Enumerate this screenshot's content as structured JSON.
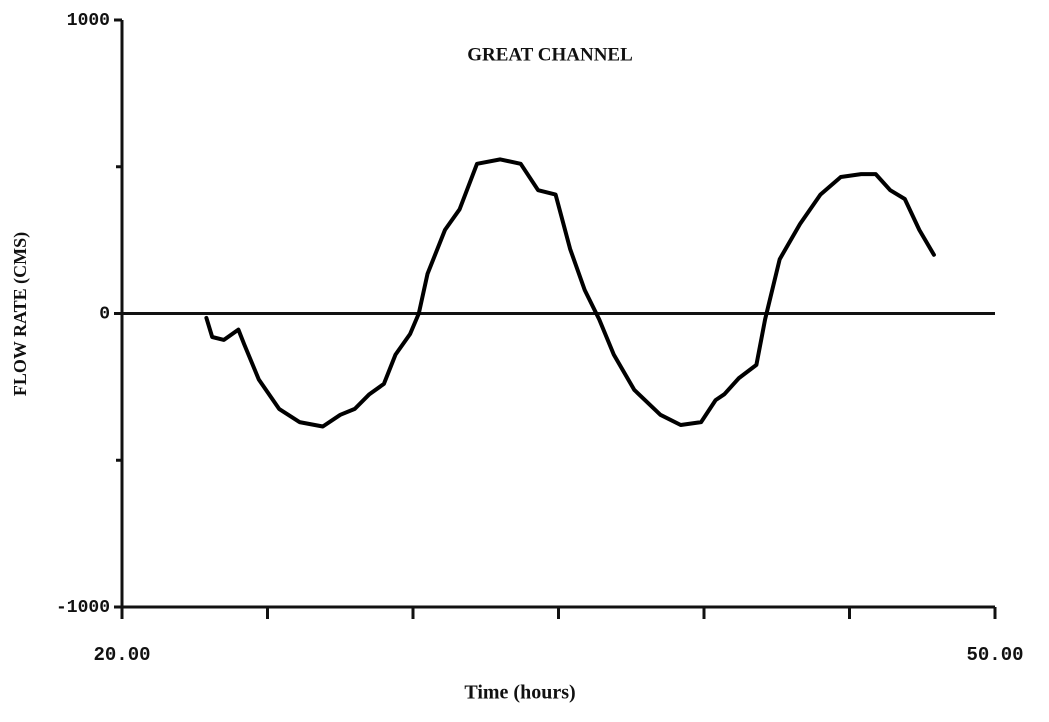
{
  "chart_data": {
    "type": "line",
    "title": "GREAT CHANNEL",
    "x_label": "Time (hours)",
    "y_label": "FLOW RATE (CMS)",
    "xlim": [
      20,
      50
    ],
    "ylim": [
      -1000,
      1000
    ],
    "xticks": [
      {
        "value": 20,
        "label": "20.00"
      },
      {
        "value": 50,
        "label": "50.00"
      }
    ],
    "xminor_ticks": [
      25,
      30,
      35,
      40,
      45
    ],
    "yticks": [
      1000,
      0,
      -1000
    ],
    "yminor_ticks": [
      500,
      -500
    ],
    "color": "#000000",
    "series": [
      {
        "name": "GREAT CHANNEL",
        "color": "#000000",
        "x": [
          22.9,
          23.1,
          23.5,
          24.0,
          24.2,
          24.7,
          25.4,
          26.1,
          26.9,
          27.5,
          28.0,
          28.5,
          29.0,
          29.4,
          29.9,
          30.2,
          30.5,
          31.1,
          31.6,
          32.2,
          33.0,
          33.7,
          34.3,
          34.9,
          35.4,
          35.9,
          36.4,
          36.9,
          37.6,
          38.5,
          39.2,
          39.9,
          40.4,
          40.7,
          41.2,
          41.8,
          42.1,
          42.6,
          43.3,
          44.0,
          44.7,
          45.4,
          45.9,
          46.4,
          46.9,
          47.4,
          47.9
        ],
        "values": [
          -15,
          -80,
          -90,
          -55,
          -105,
          -225,
          -325,
          -370,
          -385,
          -345,
          -325,
          -275,
          -240,
          -140,
          -70,
          0,
          135,
          285,
          355,
          510,
          525,
          510,
          420,
          405,
          220,
          80,
          -20,
          -140,
          -260,
          -345,
          -380,
          -370,
          -295,
          -275,
          -220,
          -175,
          -20,
          185,
          305,
          405,
          465,
          475,
          475,
          420,
          390,
          285,
          200
        ]
      }
    ]
  }
}
